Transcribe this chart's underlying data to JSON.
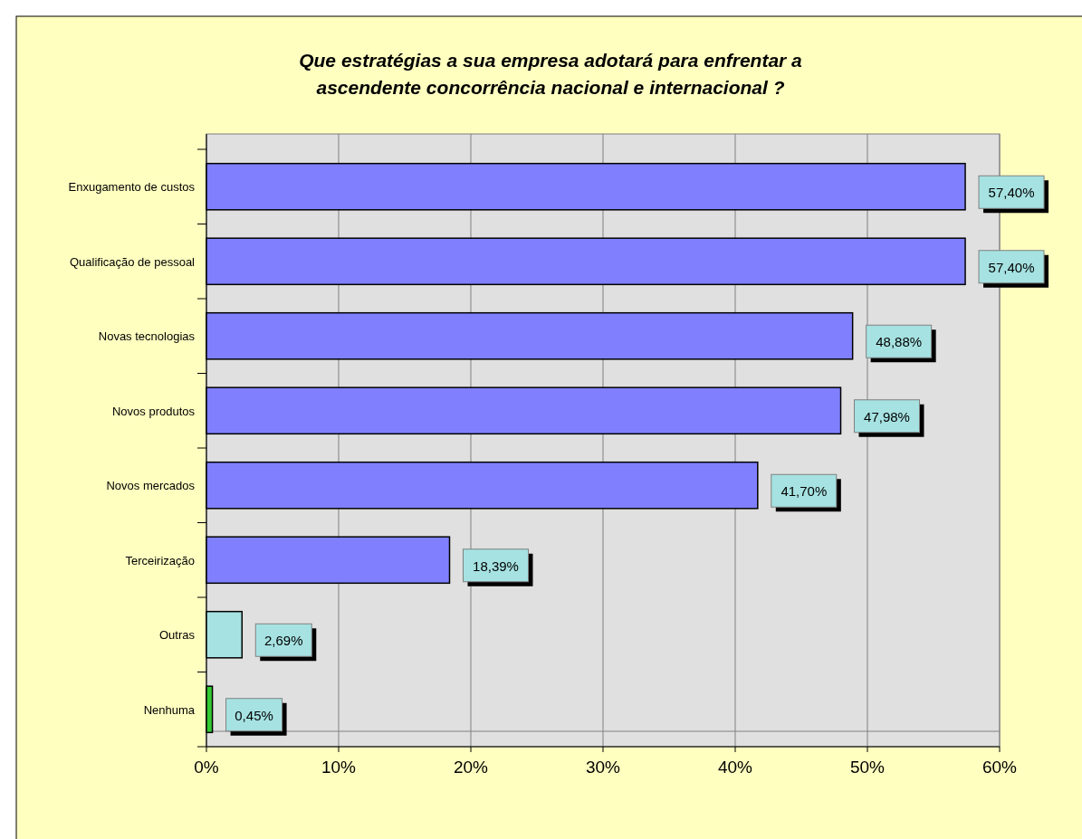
{
  "chart_data": {
    "type": "bar",
    "orientation": "horizontal",
    "title": "Que estratégias a sua empresa adotará para enfrentar a ascendente concorrência nacional e internacional ?",
    "categories": [
      "Enxugamento de custos",
      "Qualificação de pessoal",
      "Novas tecnologias",
      "Novos produtos",
      "Novos mercados",
      "Terceirização",
      "Outras",
      "Nenhuma"
    ],
    "values": [
      57.4,
      57.4,
      48.88,
      47.98,
      41.7,
      18.39,
      2.69,
      0.45
    ],
    "colors": [
      "#8080ff",
      "#8080ff",
      "#8080ff",
      "#8080ff",
      "#8080ff",
      "#8080ff",
      "#a6e2e2",
      "#33cc33"
    ],
    "value_labels": [
      "57,40%",
      "57,40%",
      "48,88%",
      "47,98%",
      "41,70%",
      "18,39%",
      "2,69%",
      "0,45%"
    ],
    "xlim": [
      0,
      60
    ],
    "xticks": [
      {
        "value": 0,
        "label": "0%"
      },
      {
        "value": 10,
        "label": "10%"
      },
      {
        "value": 20,
        "label": "20%"
      },
      {
        "value": 30,
        "label": "30%"
      },
      {
        "value": 40,
        "label": "40%"
      },
      {
        "value": 50,
        "label": "50%"
      },
      {
        "value": 60,
        "label": "60%"
      }
    ],
    "grid": "x"
  }
}
